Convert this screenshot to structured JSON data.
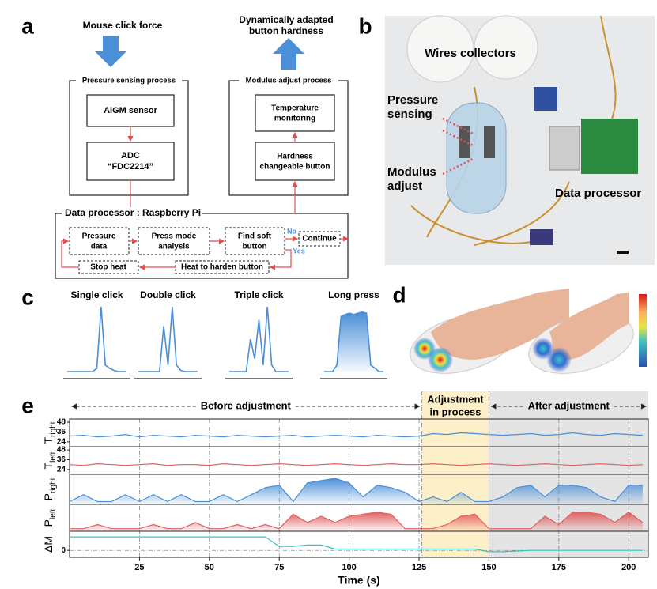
{
  "panel_a": {
    "label": "a",
    "input": "Mouse click force",
    "output": [
      "Dynamically adapted",
      "button hardness"
    ],
    "sensing": {
      "title": "Pressure sensing process",
      "sensor": "AIGM sensor",
      "adc": [
        "ADC",
        "“FDC2214”"
      ]
    },
    "modulus": {
      "title": "Modulus adjust process",
      "temperature": [
        "Temperature",
        "monitoring"
      ],
      "button": [
        "Hardness",
        "changeable button"
      ]
    },
    "processor": {
      "title": "Data processor : Raspberry Pi",
      "pressure": [
        "Pressure",
        "data"
      ],
      "analysis": [
        "Press mode",
        "analysis"
      ],
      "find": [
        "Find soft",
        "button"
      ],
      "no": "No",
      "yes": "Yes",
      "continue": "Continue",
      "stop": "Stop heat",
      "heat": "Heat to harden button"
    }
  },
  "panel_b": {
    "label": "b",
    "wires": "Wires collectors",
    "pressure": [
      "Pressure",
      "sensing"
    ],
    "modulus": [
      "Modulus",
      "adjust"
    ],
    "processor": "Data processor"
  },
  "panel_d": {
    "label": "d"
  },
  "chart_data": [
    {
      "type": "line",
      "panel_label": "c",
      "series": [
        {
          "name": "Single click",
          "color": "#4a8fd8",
          "values": [
            0,
            0,
            0,
            0,
            0,
            0,
            0,
            0.05,
            1,
            0.1,
            0.05,
            0.02,
            0,
            0,
            0
          ]
        },
        {
          "name": "Double click",
          "color": "#4a8fd8",
          "values": [
            0,
            0,
            0,
            0,
            0,
            0,
            0.7,
            0.1,
            1,
            0.1,
            0.02,
            0,
            0,
            0,
            0
          ]
        },
        {
          "name": "Triple click",
          "color": "#4a8fd8",
          "values": [
            0,
            0,
            0,
            0,
            0,
            0.5,
            0.2,
            0.8,
            0.1,
            1,
            0.1,
            0,
            0,
            0,
            0
          ]
        },
        {
          "name": "Long press",
          "color": "#4a8fd8",
          "fill": true,
          "values": [
            0,
            0,
            0,
            0.1,
            0.85,
            0.88,
            0.9,
            0.88,
            0.9,
            0.92,
            0.9,
            0.1,
            0.05,
            0,
            0
          ]
        }
      ]
    },
    {
      "type": "line",
      "panel_label": "e",
      "xlabel": "Time (s)",
      "xlim": [
        0,
        207
      ],
      "xticks": [
        25,
        50,
        75,
        100,
        125,
        150,
        175,
        200
      ],
      "x": [
        0,
        5,
        10,
        15,
        20,
        25,
        30,
        35,
        40,
        45,
        50,
        55,
        60,
        65,
        70,
        75,
        80,
        85,
        90,
        95,
        100,
        105,
        110,
        115,
        120,
        125,
        130,
        135,
        140,
        145,
        150,
        155,
        160,
        165,
        170,
        175,
        180,
        185,
        190,
        195,
        200,
        205
      ],
      "regions": [
        {
          "label": [
            "Before adjustment"
          ],
          "start": 0,
          "end": 126
        },
        {
          "label": [
            "Adjustment",
            "in process"
          ],
          "start": 126,
          "end": 150,
          "color": "#fdf0c8"
        },
        {
          "label": [
            "After adjustment"
          ],
          "start": 150,
          "end": 207,
          "color": "#e4e4e4"
        }
      ],
      "series": [
        {
          "name": "T",
          "subscript": "right",
          "color": "#4a8fd8",
          "ylim": [
            20,
            50
          ],
          "yticks": [
            24,
            36,
            48
          ],
          "values": [
            31,
            32,
            30,
            31,
            33,
            30,
            32,
            31,
            30,
            32,
            31,
            30,
            32,
            31,
            30,
            31,
            32,
            30,
            31,
            32,
            31,
            30,
            32,
            31,
            30,
            31,
            34,
            33,
            35,
            34,
            33,
            32,
            33,
            34,
            32,
            33,
            35,
            33,
            32,
            34,
            33,
            32
          ]
        },
        {
          "name": "T",
          "subscript": "left",
          "color": "#e06060",
          "ylim": [
            20,
            50
          ],
          "yticks": [
            24,
            36,
            48
          ],
          "values": [
            30,
            29,
            31,
            30,
            29,
            30,
            31,
            29,
            30,
            30,
            29,
            31,
            30,
            29,
            30,
            31,
            30,
            29,
            30,
            31,
            30,
            29,
            30,
            31,
            30,
            30,
            31,
            30,
            29,
            30,
            31,
            30,
            29,
            30,
            31,
            30,
            29,
            30,
            31,
            30,
            29,
            30
          ]
        },
        {
          "name": "P",
          "subscript": "right",
          "color": "#4a8fd8",
          "fill": true,
          "ylim": [
            -0.05,
            1.1
          ],
          "yticks": [],
          "values": [
            0,
            0.3,
            0,
            0,
            0.3,
            0,
            0.3,
            0,
            0.3,
            0,
            0,
            0.3,
            0,
            0.3,
            0.6,
            0.7,
            0,
            0.8,
            0.9,
            1,
            0.8,
            0.2,
            0.7,
            0.6,
            0.4,
            0,
            0.2,
            0,
            0.4,
            0,
            0,
            0.2,
            0.6,
            0.7,
            0.2,
            0.7,
            0.7,
            0.6,
            0.2,
            0,
            0.7,
            0.7
          ]
        },
        {
          "name": "P",
          "subscript": "left",
          "color": "#e06060",
          "fill": true,
          "ylim": [
            -0.05,
            1.1
          ],
          "yticks": [],
          "values": [
            0,
            0,
            0.2,
            0,
            0,
            0,
            0.2,
            0,
            0,
            0.3,
            0,
            0,
            0.2,
            0,
            0.2,
            0,
            0.7,
            0.3,
            0.6,
            0.3,
            0.6,
            0.7,
            0.8,
            0.7,
            0,
            0,
            0,
            0.2,
            0.6,
            0.7,
            0,
            0,
            0,
            0,
            0.6,
            0.2,
            0.8,
            0.8,
            0.7,
            0.3,
            0.8,
            0.3
          ]
        },
        {
          "name": "ΔM",
          "color": "#3bbfbf",
          "ylim": [
            -0.4,
            1.3
          ],
          "yticks": [
            0
          ],
          "grid": true,
          "values": [
            1,
            1,
            1,
            1,
            1,
            1,
            1,
            1,
            1,
            1,
            1,
            1,
            1,
            1,
            1,
            0.3,
            0.3,
            0.4,
            0.4,
            0.1,
            0.1,
            0.1,
            0.1,
            0.1,
            0.1,
            0.1,
            0.1,
            0.1,
            0.1,
            0.1,
            -0.1,
            -0.1,
            -0.05,
            0,
            0,
            0,
            0,
            0,
            0,
            0,
            0,
            0
          ]
        }
      ]
    }
  ]
}
